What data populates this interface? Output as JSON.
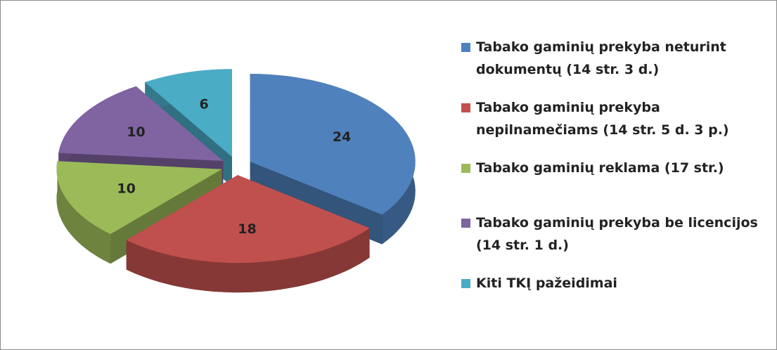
{
  "chart_data": {
    "type": "pie",
    "categories": [
      "Tabako gaminių prekyba neturint dokumentų (14 str. 3 d.)",
      "Tabako gaminių prekyba nepilnamečiams (14 str. 5 d. 3 p.)",
      "Tabako gaminių reklama (17 str.)",
      "Tabako gaminių prekyba be licencijos (14 str. 1 d.)",
      "Kiti TKĮ pažeidimai"
    ],
    "values": [
      24,
      18,
      10,
      10,
      6
    ],
    "colors": [
      "#4f81bd",
      "#c0504d",
      "#9bbb59",
      "#8064a2",
      "#4bacc6"
    ],
    "legend": "right"
  }
}
